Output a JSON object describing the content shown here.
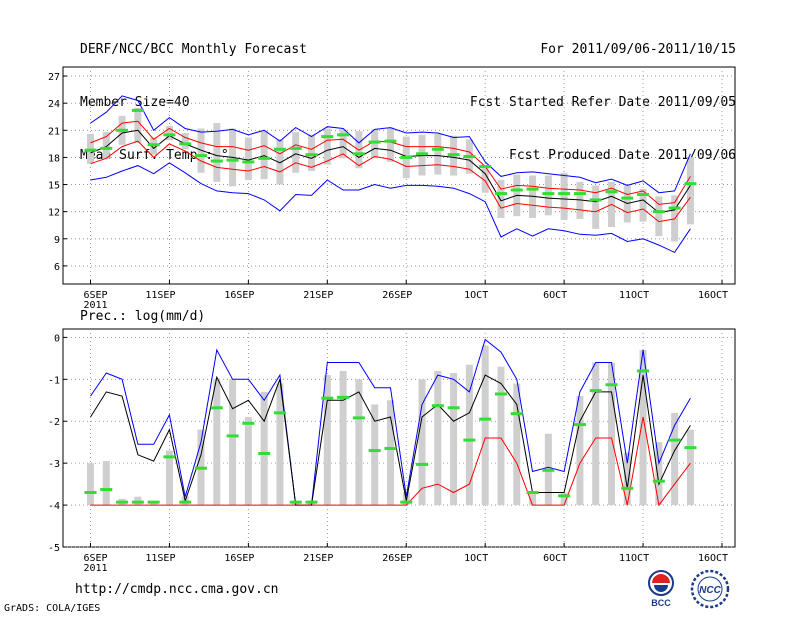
{
  "header": {
    "title": "DERF/NCC/BCC Monthly Forecast",
    "member_size": "Member Size=40",
    "variable": "Mean Surf. Temp.: °C",
    "period": "For 2011/09/06-2011/10/15",
    "fcst_started": "Fcst Started Refer Date 2011/09/05",
    "fcst_produced": "Fcst Produced Date 2011/09/06"
  },
  "footer": {
    "url": "http://cmdp.ncc.cma.gov.cn",
    "grads_credit": "GrADS: COLA/IGES",
    "logo_bcc_text": "BCC",
    "logo_ncc_text": "NCC"
  },
  "chart_data": [
    {
      "type": "line",
      "title": "Mean Surf. Temp.: °C",
      "x_tick_labels": [
        "6SEP\n2011",
        "11SEP",
        "16SEP",
        "21SEP",
        "26SEP",
        "1OCT",
        "6OCT",
        "11OCT",
        "16OCT"
      ],
      "x_tick_days": [
        0,
        5,
        10,
        15,
        20,
        25,
        30,
        35,
        40
      ],
      "ylim": [
        4,
        28
      ],
      "y_ticks": [
        6,
        9,
        12,
        15,
        18,
        21,
        24,
        27
      ],
      "grid": true,
      "x_days": [
        0,
        1,
        2,
        3,
        4,
        5,
        6,
        7,
        8,
        9,
        10,
        11,
        12,
        13,
        14,
        15,
        16,
        17,
        18,
        19,
        20,
        21,
        22,
        23,
        24,
        25,
        26,
        27,
        28,
        29,
        30,
        31,
        32,
        33,
        34,
        35,
        36,
        37,
        38
      ],
      "series": [
        {
          "name": "ensemble max",
          "color": "#0000ff",
          "values": [
            21.8,
            23.0,
            24.8,
            24.3,
            21.0,
            22.4,
            21.2,
            20.8,
            20.9,
            21.1,
            20.5,
            21.0,
            19.8,
            21.3,
            20.3,
            21.4,
            21.2,
            19.6,
            21.1,
            21.3,
            20.7,
            20.8,
            20.7,
            20.2,
            20.3,
            17.5,
            15.9,
            16.3,
            16.4,
            16.2,
            16.0,
            15.8,
            15.2,
            15.6,
            14.9,
            15.4,
            14.1,
            14.3,
            18.4
          ]
        },
        {
          "name": "upper spread",
          "color": "#ff0000",
          "values": [
            19.6,
            20.3,
            21.8,
            22.0,
            20.0,
            21.2,
            20.2,
            19.6,
            19.2,
            19.2,
            18.8,
            19.3,
            18.4,
            19.4,
            18.9,
            19.9,
            20.0,
            18.8,
            19.8,
            19.7,
            19.2,
            19.2,
            19.2,
            19.0,
            18.6,
            17.0,
            14.5,
            14.9,
            14.8,
            14.6,
            14.5,
            14.4,
            14.1,
            14.6,
            13.9,
            14.3,
            12.8,
            13.0,
            15.9
          ]
        },
        {
          "name": "ensemble mean",
          "color": "#000000",
          "values": [
            18.5,
            19.2,
            20.7,
            21.0,
            19.0,
            20.4,
            19.5,
            18.8,
            18.2,
            18.0,
            17.7,
            18.2,
            17.4,
            18.4,
            17.9,
            18.8,
            19.2,
            18.0,
            19.0,
            18.8,
            18.1,
            18.2,
            18.2,
            18.0,
            17.7,
            16.2,
            13.2,
            13.8,
            13.7,
            13.5,
            13.4,
            13.3,
            13.1,
            13.7,
            12.9,
            13.3,
            11.9,
            12.2,
            14.9
          ]
        },
        {
          "name": "lower spread",
          "color": "#ff0000",
          "values": [
            17.3,
            17.9,
            19.2,
            19.8,
            18.0,
            19.5,
            18.7,
            17.6,
            16.9,
            16.7,
            16.5,
            17.0,
            16.4,
            17.4,
            16.9,
            17.6,
            18.4,
            17.1,
            18.1,
            17.8,
            17.0,
            17.1,
            17.2,
            17.0,
            16.7,
            15.4,
            12.4,
            12.9,
            12.7,
            12.5,
            12.4,
            12.2,
            12.0,
            12.8,
            11.9,
            12.3,
            10.9,
            11.2,
            13.6
          ]
        },
        {
          "name": "ensemble min",
          "color": "#0000ff",
          "values": [
            15.5,
            15.8,
            16.5,
            17.1,
            16.2,
            17.4,
            16.3,
            15.1,
            14.3,
            14.1,
            14.0,
            13.3,
            12.1,
            13.9,
            13.8,
            15.5,
            14.4,
            14.4,
            15.0,
            14.6,
            14.9,
            14.9,
            14.8,
            14.6,
            14.0,
            13.1,
            9.2,
            10.1,
            9.3,
            10.1,
            9.9,
            9.5,
            9.4,
            9.6,
            8.7,
            9.0,
            8.3,
            7.5,
            10.1
          ]
        }
      ],
      "bars": {
        "name": "member range (grey boxes)",
        "low": [
          17.3,
          17.8,
          19.4,
          19.6,
          18.3,
          19.9,
          18.9,
          16.3,
          15.3,
          14.8,
          15.5,
          15.6,
          15.0,
          16.3,
          16.5,
          17.2,
          17.9,
          16.8,
          17.9,
          17.5,
          15.7,
          16.0,
          16.1,
          16.0,
          16.2,
          14.1,
          11.3,
          11.5,
          11.3,
          11.6,
          11.1,
          11.2,
          10.1,
          10.3,
          10.8,
          10.9,
          9.3,
          8.7,
          10.6
        ],
        "high": [
          20.6,
          20.8,
          22.6,
          23.5,
          20.2,
          21.5,
          20.7,
          21.2,
          21.8,
          21.2,
          20.2,
          20.9,
          20.0,
          20.8,
          20.5,
          21.2,
          21.1,
          20.9,
          21.1,
          21.3,
          20.3,
          20.5,
          20.6,
          20.4,
          20.0,
          17.0,
          15.5,
          16.1,
          16.0,
          16.0,
          16.3,
          15.3,
          14.9,
          15.3,
          14.9,
          14.5,
          13.7,
          13.8,
          18.0
        ]
      },
      "markers": {
        "name": "observation (green dashes)",
        "color": "#33dd33",
        "values": [
          18.8,
          19.0,
          21.0,
          23.2,
          19.4,
          20.5,
          19.5,
          18.2,
          17.6,
          17.7,
          17.5,
          17.9,
          18.9,
          19.0,
          18.3,
          20.3,
          20.5,
          18.4,
          19.7,
          19.8,
          18.0,
          18.4,
          18.9,
          18.3,
          18.1,
          17.0,
          14.0,
          14.4,
          14.5,
          14.0,
          14.0,
          14.0,
          13.3,
          14.2,
          13.5,
          13.9,
          12.0,
          12.4,
          15.1
        ]
      }
    },
    {
      "type": "line",
      "title": "Prec.: log(mm/d)",
      "x_tick_labels": [
        "6SEP\n2011",
        "11SEP",
        "16SEP",
        "21SEP",
        "26SEP",
        "1OCT",
        "6OCT",
        "11OCT",
        "16OCT"
      ],
      "x_tick_days": [
        0,
        5,
        10,
        15,
        20,
        25,
        30,
        35,
        40
      ],
      "ylim": [
        -5,
        0.2
      ],
      "y_ticks": [
        -5,
        -4,
        -3,
        -2,
        -1,
        0
      ],
      "grid": true,
      "x_days": [
        0,
        1,
        2,
        3,
        4,
        5,
        6,
        7,
        8,
        9,
        10,
        11,
        12,
        13,
        14,
        15,
        16,
        17,
        18,
        19,
        20,
        21,
        22,
        23,
        24,
        25,
        26,
        27,
        28,
        29,
        30,
        31,
        32,
        33,
        34,
        35,
        36,
        37,
        38
      ],
      "series": [
        {
          "name": "ensemble max",
          "color": "#0000ff",
          "values": [
            -1.4,
            -0.85,
            -1.0,
            -2.55,
            -2.55,
            -1.85,
            -3.8,
            -2.5,
            -0.3,
            -1.0,
            -1.0,
            -1.5,
            -0.9,
            -4.0,
            -4.0,
            -0.6,
            -0.6,
            -0.6,
            -1.2,
            -1.2,
            -3.8,
            -1.6,
            -0.9,
            -1.0,
            -1.3,
            -0.05,
            -0.35,
            -1.0,
            -3.2,
            -3.1,
            -3.2,
            -1.3,
            -0.6,
            -0.6,
            -3.0,
            -0.3,
            -3.0,
            -2.1,
            -1.45
          ]
        },
        {
          "name": "ensemble mean",
          "color": "#000000",
          "values": [
            -1.9,
            -1.3,
            -1.4,
            -2.8,
            -2.95,
            -2.2,
            -3.9,
            -2.8,
            -0.95,
            -1.7,
            -1.5,
            -2.0,
            -1.0,
            -4.0,
            -4.0,
            -1.5,
            -1.5,
            -1.3,
            -2.0,
            -1.9,
            -3.9,
            -1.9,
            -1.6,
            -2.0,
            -1.8,
            -0.9,
            -1.1,
            -1.6,
            -3.7,
            -3.7,
            -3.7,
            -2.0,
            -1.3,
            -1.3,
            -3.6,
            -0.9,
            -3.5,
            -2.7,
            -2.1
          ]
        },
        {
          "name": "ensemble min",
          "color": "#ff0000",
          "values": [
            -4.0,
            -4.0,
            -4.0,
            -4.0,
            -4.0,
            -4.0,
            -4.0,
            -4.0,
            -4.0,
            -4.0,
            -4.0,
            -4.0,
            -4.0,
            -4.0,
            -4.0,
            -4.0,
            -4.0,
            -4.0,
            -4.0,
            -4.0,
            -4.0,
            -3.6,
            -3.5,
            -3.7,
            -3.5,
            -2.4,
            -2.4,
            -3.0,
            -4.0,
            -4.0,
            -4.0,
            -3.0,
            -2.4,
            -2.4,
            -4.0,
            -1.9,
            -4.0,
            -3.5,
            -3.0
          ]
        }
      ],
      "bars": {
        "name": "member range (grey boxes)",
        "low": [
          -4.0,
          -4.0,
          -4.0,
          -4.0,
          -4.0,
          -4.0,
          -4.0,
          -4.0,
          -4.0,
          -4.0,
          -4.0,
          -4.0,
          -4.0,
          -4.0,
          -4.0,
          -4.0,
          -4.0,
          -4.0,
          -4.0,
          -4.0,
          -4.0,
          -4.0,
          -4.0,
          -4.0,
          -4.0,
          -4.0,
          -4.0,
          -4.0,
          -4.0,
          -4.0,
          -4.0,
          -4.0,
          -4.0,
          -4.0,
          -4.0,
          -4.0,
          -4.0,
          -4.0,
          -4.0
        ],
        "high": [
          -3.0,
          -2.95,
          -3.85,
          -3.8,
          -3.9,
          -2.7,
          -3.8,
          -2.2,
          -1.0,
          -1.0,
          -1.9,
          -1.3,
          -1.1,
          -3.9,
          -3.9,
          -0.9,
          -0.8,
          -1.0,
          -1.6,
          -1.5,
          -3.7,
          -1.0,
          -0.8,
          -0.85,
          -0.65,
          -0.2,
          -0.7,
          -1.1,
          -3.7,
          -2.3,
          -3.7,
          -1.4,
          -0.6,
          -0.6,
          -2.75,
          -0.3,
          -2.5,
          -1.8,
          -2.2
        ]
      },
      "markers": {
        "name": "observation (green dashes)",
        "color": "#33dd33",
        "values": [
          -3.7,
          -3.63,
          -3.93,
          -3.93,
          -3.93,
          -2.85,
          -3.93,
          -3.12,
          -1.68,
          -2.35,
          -2.05,
          -2.77,
          -1.8,
          -3.93,
          -3.93,
          -1.45,
          -1.43,
          -1.92,
          -2.7,
          -2.65,
          -3.93,
          -3.03,
          -1.63,
          -1.68,
          -2.45,
          -1.95,
          -1.35,
          -1.82,
          -3.7,
          -3.17,
          -3.78,
          -2.08,
          -1.27,
          -1.13,
          -3.6,
          -0.8,
          -3.43,
          -2.45,
          -2.63
        ]
      }
    }
  ]
}
